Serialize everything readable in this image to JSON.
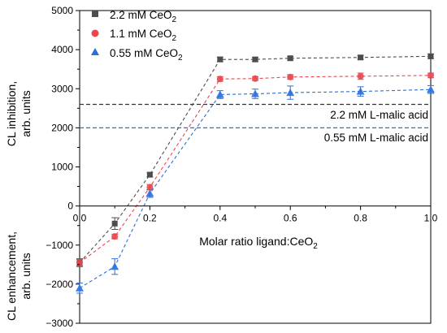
{
  "chart_data": {
    "type": "scatter",
    "xlabel": "Molar ratio ligand:CeO",
    "xlabel_sub": "2",
    "ylabel_upper": [
      "CL inhibition,",
      "arb. units"
    ],
    "ylabel_lower": [
      "CL enhancement,",
      "arb. units"
    ],
    "xlim": [
      0,
      1
    ],
    "ylim": [
      -3000,
      5000
    ],
    "x_ticks": [
      0.0,
      0.2,
      0.4,
      0.6,
      0.8,
      1.0
    ],
    "x_tick_labels": [
      "0.0",
      "0.2",
      "0.4",
      "0.6",
      "0.8",
      "1.0"
    ],
    "y_ticks": [
      -3000,
      -2000,
      -1000,
      0,
      1000,
      2000,
      3000,
      4000,
      5000
    ],
    "y_tick_labels": [
      "−3000",
      "−2000",
      "−1000",
      "0",
      "1000",
      "2000",
      "3000",
      "4000",
      "5000"
    ],
    "legend_position": "top-left",
    "series": [
      {
        "name": "2.2 mM CeO",
        "name_sub": "2",
        "marker": "square",
        "color": "#4d4d4d",
        "x": [
          0.0,
          0.1,
          0.2,
          0.4,
          0.5,
          0.6,
          0.8,
          1.0
        ],
        "y": [
          -1450,
          -450,
          800,
          3750,
          3750,
          3780,
          3800,
          3830
        ],
        "err": [
          100,
          150,
          60,
          60,
          50,
          50,
          50,
          60
        ]
      },
      {
        "name": "1.1 mM CeO",
        "name_sub": "2",
        "marker": "circle",
        "color": "#e8474d",
        "x": [
          0.0,
          0.1,
          0.2,
          0.4,
          0.5,
          0.6,
          0.8,
          1.0
        ],
        "y": [
          -1450,
          -780,
          480,
          3250,
          3260,
          3300,
          3320,
          3340
        ],
        "err": [
          80,
          60,
          70,
          60,
          50,
          60,
          80,
          60
        ]
      },
      {
        "name": "0.55 mM CeO",
        "name_sub": "2",
        "marker": "triangle",
        "color": "#2a6fdb",
        "x": [
          0.0,
          0.1,
          0.2,
          0.4,
          0.5,
          0.6,
          0.8,
          1.0
        ],
        "y": [
          -2100,
          -1550,
          320,
          2850,
          2870,
          2900,
          2930,
          2980
        ],
        "err": [
          130,
          200,
          100,
          100,
          120,
          170,
          120,
          100
        ]
      }
    ],
    "reference_lines": [
      {
        "label": "2.2 mM L-malic acid",
        "y": 2600,
        "color": "#333333"
      },
      {
        "label": "0.55 mM L-malic acid",
        "y": 2000,
        "color": "#2a6fdb"
      }
    ]
  }
}
